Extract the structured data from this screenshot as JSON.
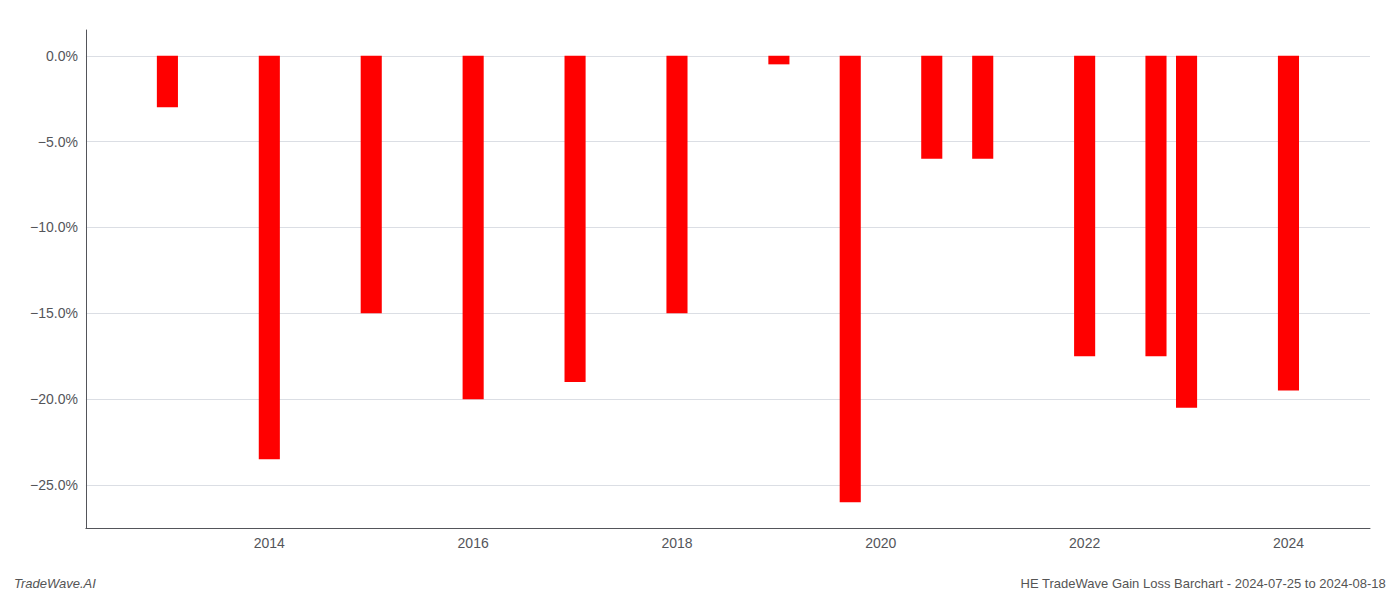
{
  "chart_data": {
    "type": "bar",
    "x": [
      2013,
      2014,
      2015,
      2016,
      2017,
      2018,
      2019,
      2019.7,
      2020.5,
      2021,
      2022,
      2022.7,
      2023,
      2024
    ],
    "values": [
      -3.0,
      -23.5,
      -15.0,
      -20.0,
      -19.0,
      -15.0,
      -0.5,
      -26.0,
      -6.0,
      -6.0,
      -17.5,
      -17.5,
      -20.5,
      -19.5
    ],
    "color": "#ff0000",
    "xlim": [
      2012.2,
      2024.8
    ],
    "xticks": [
      2014,
      2016,
      2018,
      2020,
      2022,
      2024
    ],
    "ylim": [
      -27.5,
      1.5
    ],
    "yticks": [
      {
        "value": 0.0,
        "label": "0.0%"
      },
      {
        "value": -5.0,
        "label": "−5.0%"
      },
      {
        "value": -10.0,
        "label": "−10.0%"
      },
      {
        "value": -15.0,
        "label": "−15.0%"
      },
      {
        "value": -20.0,
        "label": "−20.0%"
      },
      {
        "value": -25.0,
        "label": "−25.0%"
      }
    ],
    "grid": true,
    "annotations": [
      "TradeWave.AI",
      "HE TradeWave Gain Loss Barchart - 2024-07-25 to 2024-08-18"
    ]
  }
}
